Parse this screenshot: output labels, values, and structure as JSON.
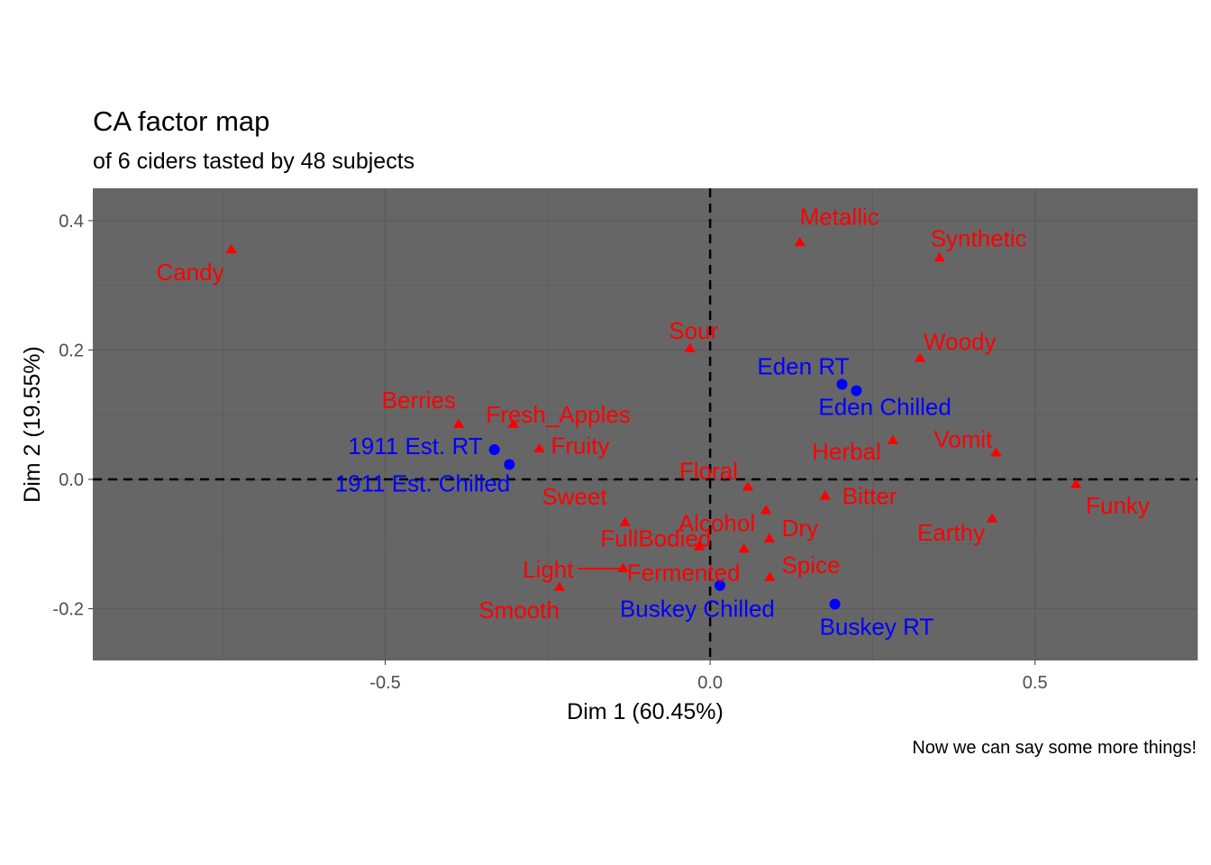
{
  "chart_data": {
    "type": "scatter",
    "title": "CA factor map",
    "subtitle": "of 6 ciders tasted by 48 subjects",
    "caption": "Now we can say some more things!",
    "xlabel": "Dim 1 (60.45%)",
    "ylabel": "Dim 2 (19.55%)",
    "xlim": [
      -0.95,
      0.75
    ],
    "ylim": [
      -0.28,
      0.45
    ],
    "x_ticks": [
      -0.5,
      0.0,
      0.5
    ],
    "x_tick_labels": [
      "-0.5",
      "0.0",
      "0.5"
    ],
    "y_ticks": [
      -0.2,
      0.0,
      0.2,
      0.4
    ],
    "y_tick_labels": [
      "-0.2",
      "0.0",
      "0.2",
      "0.4"
    ],
    "grid": true,
    "reference_lines": {
      "x": 0,
      "y": 0,
      "style": "dashed"
    },
    "colors": {
      "panel": "#666666",
      "grid": "#5a5a5a",
      "attributes": "#ff0000",
      "ciders": "#0000ff"
    },
    "series": [
      {
        "group": "attributes",
        "marker": "triangle",
        "color": "#ff0000",
        "points": [
          {
            "label": "Candy",
            "x": -0.737,
            "y": 0.355
          },
          {
            "label": "Metallic",
            "x": 0.138,
            "y": 0.366
          },
          {
            "label": "Synthetic",
            "x": 0.353,
            "y": 0.342
          },
          {
            "label": "Sour",
            "x": -0.031,
            "y": 0.202
          },
          {
            "label": "Woody",
            "x": 0.323,
            "y": 0.187
          },
          {
            "label": "Berries",
            "x": -0.387,
            "y": 0.085
          },
          {
            "label": "Fresh_Apples",
            "x": -0.303,
            "y": 0.085
          },
          {
            "label": "Fruity",
            "x": -0.263,
            "y": 0.047
          },
          {
            "label": "Herbal",
            "x": 0.281,
            "y": 0.06
          },
          {
            "label": "Vomit",
            "x": 0.44,
            "y": 0.041
          },
          {
            "label": "Floral",
            "x": 0.058,
            "y": -0.012
          },
          {
            "label": "Bitter",
            "x": 0.177,
            "y": -0.026
          },
          {
            "label": "Funky",
            "x": 0.563,
            "y": -0.008
          },
          {
            "label": "Sweet",
            "x": -0.131,
            "y": -0.067
          },
          {
            "label": "Alcohol",
            "x": 0.086,
            "y": -0.048
          },
          {
            "label": "Dry",
            "x": 0.091,
            "y": -0.092
          },
          {
            "label": "Earthy",
            "x": 0.434,
            "y": -0.061
          },
          {
            "label": "FullBodied",
            "x": -0.017,
            "y": -0.104
          },
          {
            "label": "Fermented",
            "x": 0.052,
            "y": -0.108
          },
          {
            "label": "Spice",
            "x": 0.092,
            "y": -0.152
          },
          {
            "label": "Light",
            "x": -0.134,
            "y": -0.138
          },
          {
            "label": "Smooth",
            "x": -0.232,
            "y": -0.167
          }
        ]
      },
      {
        "group": "ciders",
        "marker": "circle",
        "color": "#0000ff",
        "points": [
          {
            "label": "Eden RT",
            "x": 0.203,
            "y": 0.147
          },
          {
            "label": "Eden Chilled",
            "x": 0.225,
            "y": 0.137
          },
          {
            "label": "1911 Est. RT",
            "x": -0.332,
            "y": 0.046
          },
          {
            "label": "1911 Est. Chilled",
            "x": -0.309,
            "y": 0.023
          },
          {
            "label": "Buskey Chilled",
            "x": 0.015,
            "y": -0.164
          },
          {
            "label": "Buskey RT",
            "x": 0.192,
            "y": -0.193
          }
        ]
      }
    ]
  }
}
